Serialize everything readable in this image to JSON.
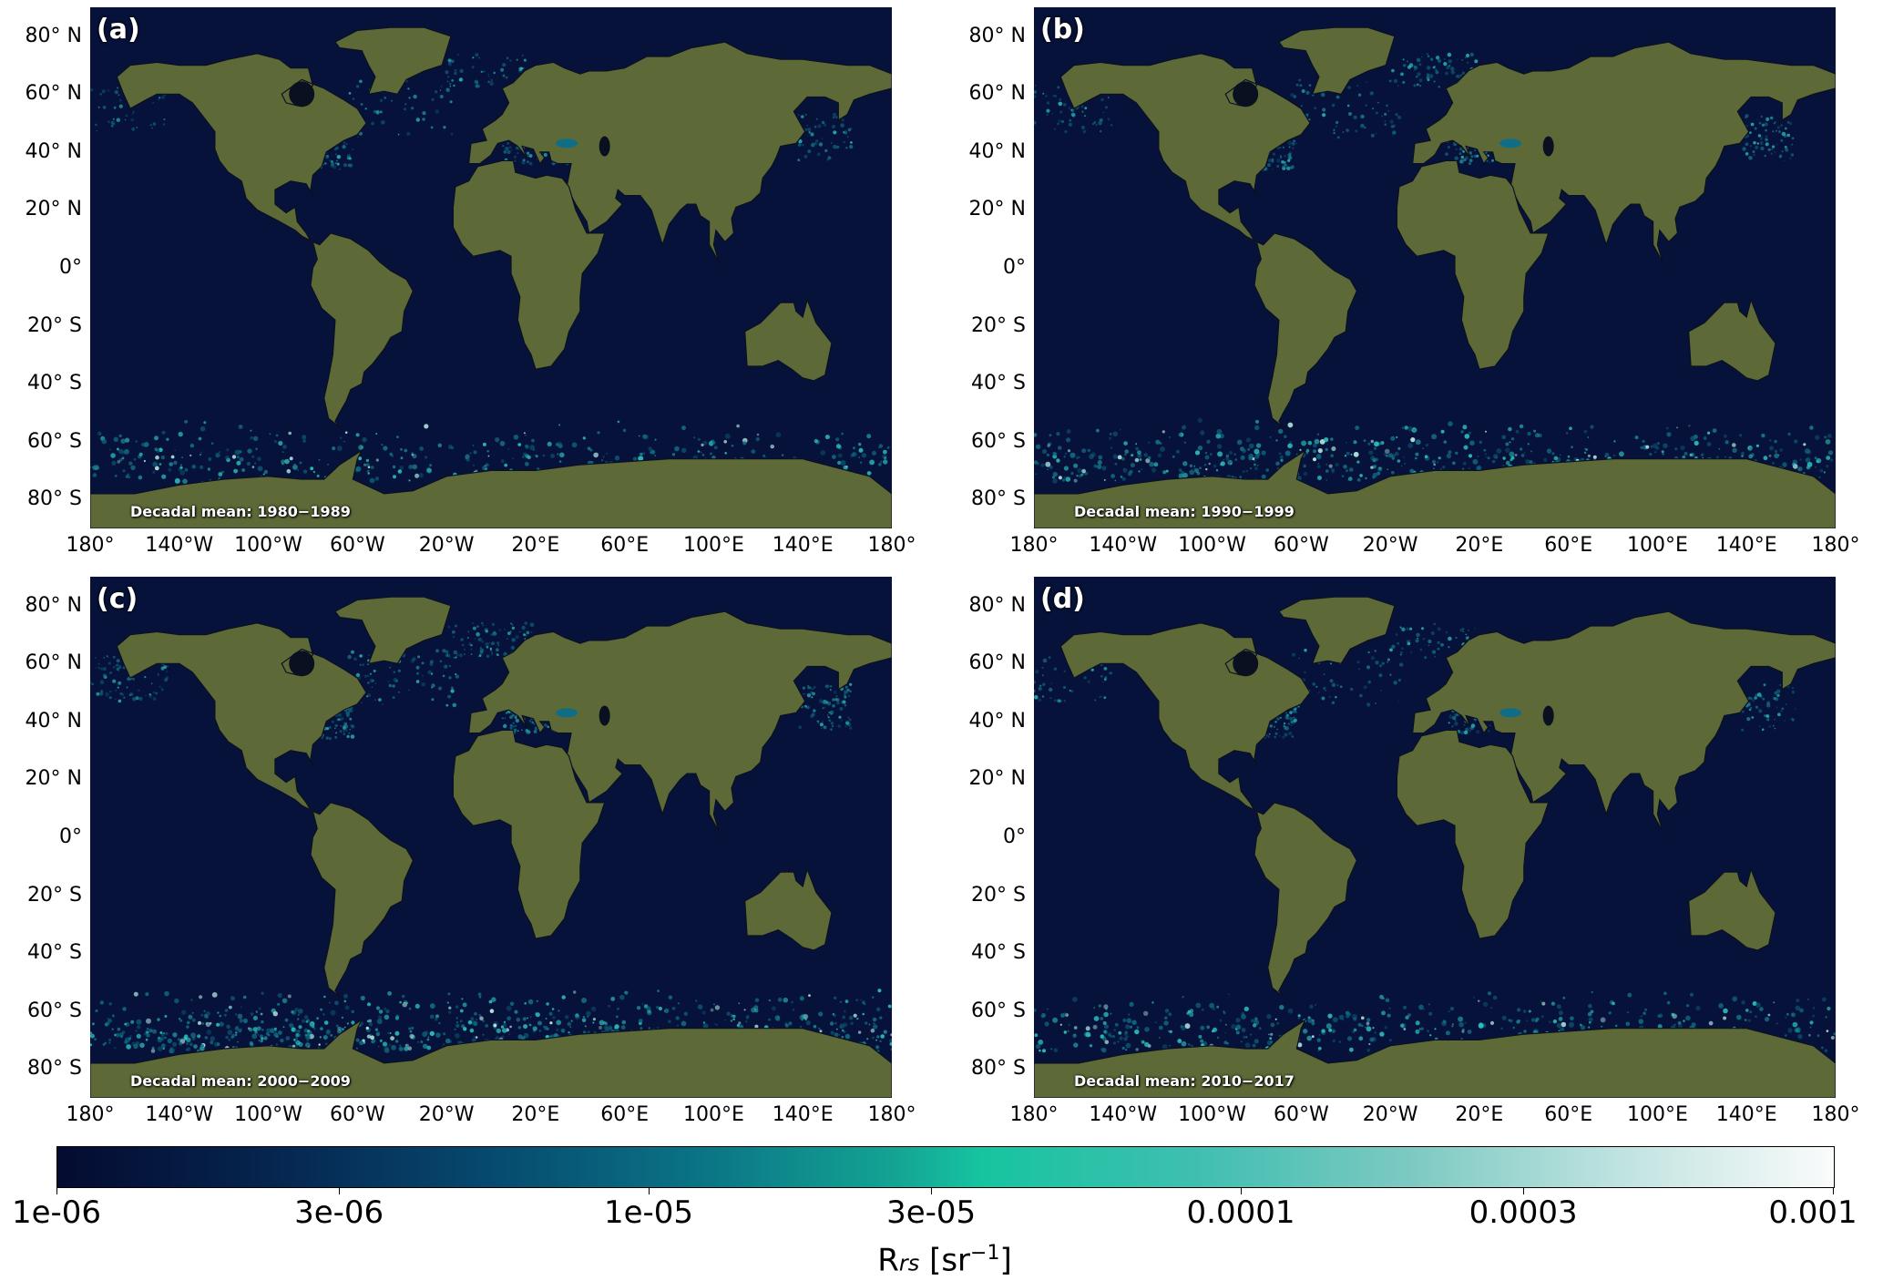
{
  "colors": {
    "ocean": "#06123a",
    "land": "#5d6a38",
    "coast": "#0b1020",
    "bloom_low": "#0f6e86",
    "bloom_mid": "#2ec7c2",
    "bloom_high": "#bff4ee"
  },
  "lat_labels": [
    "80° N",
    "60° N",
    "40° N",
    "20° N",
    "0°",
    "20° S",
    "40° S",
    "60° S",
    "80° S"
  ],
  "lat_values": [
    80,
    60,
    40,
    20,
    0,
    -20,
    -40,
    -60,
    -80
  ],
  "lon_labels": [
    "180°",
    "140°W",
    "100°W",
    "60°W",
    "20°W",
    "20°E",
    "60°E",
    "100°E",
    "140°E",
    "180°"
  ],
  "lon_values": [
    -180,
    -140,
    -100,
    -60,
    -20,
    20,
    60,
    100,
    140,
    180
  ],
  "panels": [
    {
      "label": "(a)",
      "caption": "Decadal mean: 1980−1989",
      "intensity": 0.55
    },
    {
      "label": "(b)",
      "caption": "Decadal mean: 1990−1999",
      "intensity": 0.75
    },
    {
      "label": "(c)",
      "caption": "Decadal mean: 2000−2009",
      "intensity": 0.95
    },
    {
      "label": "(d)",
      "caption": "Decadal mean: 2010−2017",
      "intensity": 0.6
    }
  ],
  "colorbar": {
    "ticks": [
      "1e-06",
      "3e-06",
      "1e-05",
      "3e-05",
      "0.0001",
      "0.0003",
      "0.001"
    ],
    "tick_values": [
      1e-06,
      3e-06,
      1e-05,
      3e-05,
      0.0001,
      0.0003,
      0.001
    ],
    "min": 1e-06,
    "max": 0.001,
    "scale": "log",
    "title_main": "R",
    "title_sub": "rs",
    "title_unit": " [sr",
    "title_exp": "−1",
    "title_close": "]"
  }
}
